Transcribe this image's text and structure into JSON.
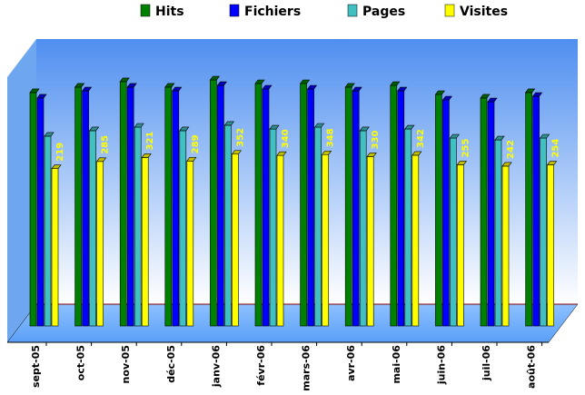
{
  "chart_data": {
    "type": "bar3d",
    "categories": [
      "sept-05",
      "oct-05",
      "nov-05",
      "déc-05",
      "janv-06",
      "févr-06",
      "mars-06",
      "avr-06",
      "mai-06",
      "juin-06",
      "juil-06",
      "août-06"
    ],
    "series": [
      {
        "name": "Hits",
        "color": "#008000",
        "values": [
          917,
          967,
          1017,
          967,
          1033,
          1000,
          1000,
          967,
          983,
          900,
          867,
          917
        ]
      },
      {
        "name": "Fichiers",
        "color": "#0000ff",
        "values": [
          867,
          933,
          967,
          933,
          983,
          950,
          950,
          933,
          933,
          850,
          833,
          883
        ]
      },
      {
        "name": "Pages",
        "color": "#40c0c0",
        "values": [
          517,
          567,
          600,
          567,
          617,
          583,
          600,
          567,
          583,
          500,
          483,
          500
        ]
      },
      {
        "name": "Visites",
        "color": "#ffff00",
        "values": [
          219,
          285,
          321,
          289,
          352,
          340,
          348,
          330,
          342,
          255,
          242,
          254
        ]
      }
    ],
    "ylim": [
      -1225,
      1100
    ]
  }
}
